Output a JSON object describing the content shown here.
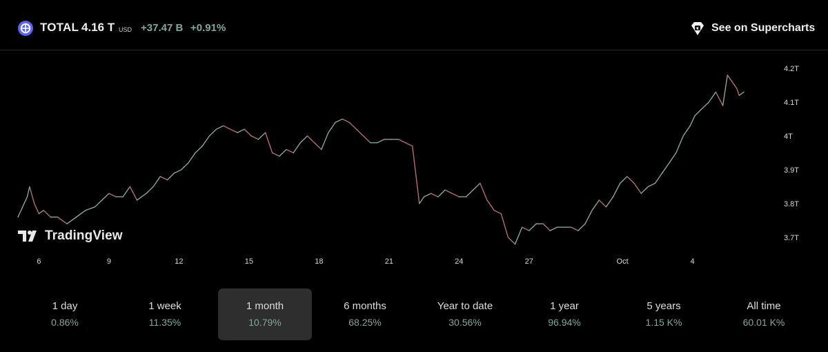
{
  "header": {
    "symbol": "TOTAL",
    "price": "4.16 T",
    "currency": "USD",
    "change_abs": "+37.47 B",
    "change_pct": "+0.91%",
    "supercharts_label": "See on Supercharts",
    "symbol_icon": "crypto-total-icon",
    "supercharts_icon": "supercharts-diamond-icon"
  },
  "brand": {
    "name": "TradingView",
    "icon": "tradingview-logo-icon"
  },
  "colors": {
    "background": "#000000",
    "up": "#7ea999",
    "down": "#b26d6d",
    "axis_text": "#d8d8d8",
    "active_tab": "#2e2e2e"
  },
  "ranges": [
    {
      "label": "1 day",
      "value": "0.86%",
      "active": false
    },
    {
      "label": "1 week",
      "value": "11.35%",
      "active": false
    },
    {
      "label": "1 month",
      "value": "10.79%",
      "active": true
    },
    {
      "label": "6 months",
      "value": "68.25%",
      "active": false
    },
    {
      "label": "Year to date",
      "value": "30.56%",
      "active": false
    },
    {
      "label": "1 year",
      "value": "96.94%",
      "active": false
    },
    {
      "label": "5 years",
      "value": "1.15 K%",
      "active": false
    },
    {
      "label": "All time",
      "value": "60.01 K%",
      "active": false
    }
  ],
  "chart_data": {
    "type": "line",
    "title": "",
    "xlabel": "",
    "ylabel": "",
    "x_ticks": [
      {
        "label": "6",
        "day": 6
      },
      {
        "label": "9",
        "day": 9
      },
      {
        "label": "12",
        "day": 12
      },
      {
        "label": "15",
        "day": 15
      },
      {
        "label": "18",
        "day": 18
      },
      {
        "label": "21",
        "day": 21
      },
      {
        "label": "24",
        "day": 24
      },
      {
        "label": "27",
        "day": 27
      },
      {
        "label": "Oct",
        "day": 31
      },
      {
        "label": "4",
        "day": 34
      }
    ],
    "y_ticks": [
      {
        "label": "4.2T",
        "value": 4.2
      },
      {
        "label": "4.1T",
        "value": 4.1
      },
      {
        "label": "4T",
        "value": 4.0
      },
      {
        "label": "3.9T",
        "value": 3.9
      },
      {
        "label": "3.8T",
        "value": 3.8
      },
      {
        "label": "3.7T",
        "value": 3.7
      }
    ],
    "xlim": [
      5.1,
      37.5
    ],
    "ylim": [
      3.665,
      4.245
    ],
    "unit": "T USD",
    "grid": false,
    "series": [
      {
        "x": [
          5.1,
          5.3,
          5.5,
          5.6,
          5.8,
          6.0,
          6.2,
          6.5,
          6.8,
          7.2,
          7.6,
          8.0,
          8.4,
          8.7,
          9.0,
          9.3,
          9.6,
          9.9,
          10.2,
          10.6,
          10.9,
          11.2,
          11.5,
          11.8,
          12.1,
          12.4,
          12.7,
          13.0,
          13.3,
          13.6,
          13.9,
          14.2,
          14.5,
          14.8,
          15.1,
          15.4,
          15.7,
          16.0,
          16.3,
          16.6,
          16.9,
          17.2,
          17.5,
          17.8,
          18.1,
          18.4,
          18.7,
          19.0,
          19.3,
          19.6,
          19.9,
          20.2,
          20.5,
          20.8,
          21.1,
          21.4,
          21.7,
          22.0,
          22.3,
          22.5,
          22.8,
          23.1,
          23.4,
          23.7,
          24.0,
          24.3,
          24.6,
          24.9,
          25.2,
          25.5,
          25.8,
          26.1,
          26.4,
          26.7,
          27.0,
          27.3,
          27.6,
          27.9,
          28.2,
          28.5,
          28.8,
          29.1,
          29.4,
          29.7,
          30.0,
          30.3,
          30.6,
          30.9,
          31.2,
          31.5,
          31.8,
          32.1,
          32.4,
          32.7,
          33.0,
          33.3,
          33.6,
          33.9,
          34.1,
          34.4,
          34.7,
          35.0,
          35.3,
          35.5,
          35.6,
          35.8,
          35.9,
          36.0,
          36.2
        ],
        "y": [
          3.76,
          3.79,
          3.82,
          3.85,
          3.8,
          3.77,
          3.78,
          3.76,
          3.76,
          3.74,
          3.76,
          3.78,
          3.79,
          3.81,
          3.83,
          3.82,
          3.82,
          3.85,
          3.81,
          3.83,
          3.85,
          3.88,
          3.87,
          3.89,
          3.9,
          3.92,
          3.95,
          3.97,
          4.0,
          4.02,
          4.03,
          4.02,
          4.01,
          4.02,
          4.0,
          3.99,
          4.01,
          3.95,
          3.94,
          3.96,
          3.95,
          3.98,
          4.0,
          3.98,
          3.96,
          4.01,
          4.04,
          4.05,
          4.04,
          4.02,
          4.0,
          3.98,
          3.98,
          3.99,
          3.99,
          3.99,
          3.98,
          3.97,
          3.8,
          3.82,
          3.83,
          3.82,
          3.84,
          3.83,
          3.82,
          3.82,
          3.84,
          3.86,
          3.81,
          3.78,
          3.77,
          3.7,
          3.68,
          3.73,
          3.72,
          3.74,
          3.74,
          3.72,
          3.73,
          3.73,
          3.73,
          3.72,
          3.74,
          3.78,
          3.81,
          3.79,
          3.82,
          3.86,
          3.88,
          3.86,
          3.83,
          3.85,
          3.86,
          3.89,
          3.92,
          3.95,
          4.0,
          4.03,
          4.06,
          4.08,
          4.1,
          4.13,
          4.09,
          4.18,
          4.17,
          4.15,
          4.14,
          4.12,
          4.13
        ]
      }
    ]
  }
}
